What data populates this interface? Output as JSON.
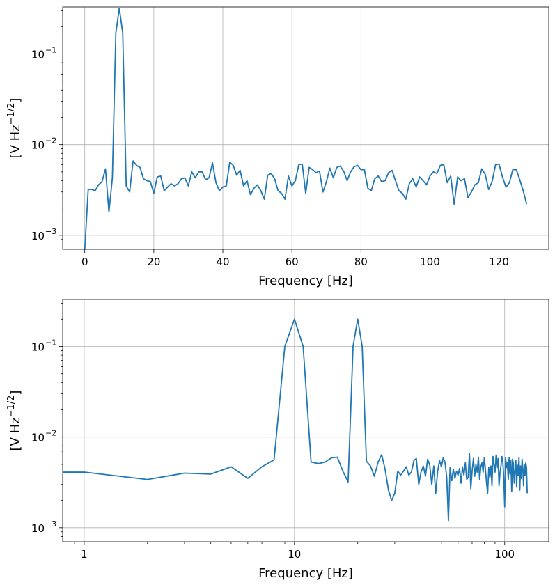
{
  "colors": {
    "series": "#1f77b4",
    "grid": "#b0b0b0",
    "frame": "#000000"
  },
  "chart_data": [
    {
      "type": "line",
      "xscale": "linear",
      "yscale": "log",
      "grid": true,
      "xlabel": "Frequency [Hz]",
      "ylabel": "[V Hz⁻¹ᐟ²]",
      "ylabel_parts": {
        "prefix": "[V Hz",
        "sup": "−1/2",
        "suffix": "]"
      },
      "xlim": [
        -6.4,
        134.4
      ],
      "ylim": [
        0.0007,
        0.33
      ],
      "xticks": [
        0,
        20,
        40,
        60,
        80,
        100,
        120
      ],
      "xtick_labels": [
        "0",
        "20",
        "40",
        "60",
        "80",
        "100",
        "120"
      ],
      "yticks": [
        0.001,
        0.01,
        0.1
      ],
      "ytick_labels": [
        [
          "10",
          "−3"
        ],
        [
          "10",
          "−2"
        ],
        [
          "10",
          "−1"
        ]
      ],
      "series": [
        {
          "x": [
            0,
            1,
            2,
            3,
            4,
            5,
            6,
            7,
            8,
            9,
            10,
            11,
            12,
            13,
            14,
            15,
            16,
            17,
            18,
            19,
            20,
            21,
            22,
            23,
            24,
            25,
            26,
            27,
            28,
            29,
            30,
            31,
            32,
            33,
            34,
            35,
            36,
            37,
            38,
            39,
            40,
            41,
            42,
            43,
            44,
            45,
            46,
            47,
            48,
            49,
            50,
            51,
            52,
            53,
            54,
            55,
            56,
            57,
            58,
            59,
            60,
            61,
            62,
            63,
            64,
            65,
            66,
            67,
            68,
            69,
            70,
            71,
            72,
            73,
            74,
            75,
            76,
            77,
            78,
            79,
            80,
            81,
            82,
            83,
            84,
            85,
            86,
            87,
            88,
            89,
            90,
            91,
            92,
            93,
            94,
            95,
            96,
            97,
            98,
            99,
            100,
            101,
            102,
            103,
            104,
            105,
            106,
            107,
            108,
            109,
            110,
            111,
            112,
            113,
            114,
            115,
            116,
            117,
            118,
            119,
            120,
            121,
            122,
            123,
            124,
            125,
            126,
            127,
            128
          ],
          "y": [
            0.0007,
            0.0032,
            0.0032,
            0.0031,
            0.0036,
            0.0039,
            0.0054,
            0.0018,
            0.0043,
            0.17,
            0.32,
            0.17,
            0.0035,
            0.003,
            0.0066,
            0.0059,
            0.0056,
            0.0042,
            0.004,
            0.0039,
            0.0029,
            0.0044,
            0.0045,
            0.0031,
            0.0034,
            0.0037,
            0.0035,
            0.0037,
            0.0042,
            0.0043,
            0.0035,
            0.005,
            0.0043,
            0.005,
            0.005,
            0.0041,
            0.0043,
            0.0063,
            0.0038,
            0.0031,
            0.0034,
            0.0035,
            0.0064,
            0.0059,
            0.0046,
            0.0052,
            0.0035,
            0.004,
            0.0028,
            0.0033,
            0.0036,
            0.0031,
            0.0025,
            0.0046,
            0.0048,
            0.0042,
            0.0031,
            0.0029,
            0.0025,
            0.0045,
            0.0035,
            0.004,
            0.006,
            0.0061,
            0.0029,
            0.0056,
            0.0053,
            0.0049,
            0.0051,
            0.003,
            0.0039,
            0.0055,
            0.0043,
            0.0056,
            0.0058,
            0.0051,
            0.004,
            0.005,
            0.0057,
            0.0059,
            0.0053,
            0.0053,
            0.0033,
            0.0031,
            0.0042,
            0.0045,
            0.0039,
            0.004,
            0.0049,
            0.0052,
            0.004,
            0.0031,
            0.0029,
            0.0025,
            0.0037,
            0.0042,
            0.0034,
            0.0044,
            0.004,
            0.0036,
            0.0045,
            0.005,
            0.0048,
            0.0059,
            0.006,
            0.0038,
            0.0045,
            0.0022,
            0.0044,
            0.004,
            0.0042,
            0.0026,
            0.003,
            0.0036,
            0.0038,
            0.0054,
            0.0047,
            0.0032,
            0.0039,
            0.006,
            0.0061,
            0.0044,
            0.0034,
            0.0038,
            0.0053,
            0.0053,
            0.0041,
            0.0031,
            0.0022
          ]
        }
      ]
    },
    {
      "type": "line",
      "xscale": "log",
      "yscale": "log",
      "grid": true,
      "xlabel": "Frequency [Hz]",
      "ylabel": "[V Hz⁻¹ᐟ²]",
      "ylabel_parts": {
        "prefix": "[V Hz",
        "sup": "−1/2",
        "suffix": "]"
      },
      "xlim": [
        0.79,
        162
      ],
      "ylim": [
        0.0007,
        0.33
      ],
      "xticks": [
        1,
        10,
        100
      ],
      "xtick_labels": [
        "1",
        "10",
        "100"
      ],
      "yticks": [
        0.001,
        0.01,
        0.1
      ],
      "ytick_labels": [
        [
          "10",
          "−3"
        ],
        [
          "10",
          "−2"
        ],
        [
          "10",
          "−1"
        ]
      ],
      "series": [
        {
          "x": [
            0.78,
            1,
            2,
            3,
            4,
            5,
            6,
            7,
            8,
            9,
            10,
            11,
            12,
            13,
            14,
            15,
            16,
            17,
            18,
            19,
            20,
            21,
            22,
            23,
            24,
            25,
            26,
            27,
            28,
            29,
            30,
            31,
            32,
            33,
            34,
            35,
            36,
            37,
            38,
            39,
            40,
            41,
            42,
            43,
            44,
            45,
            46,
            47,
            48,
            49,
            50,
            51,
            52,
            53,
            54,
            55,
            56,
            57,
            58,
            59,
            60,
            61,
            62,
            63,
            64,
            65,
            66,
            67,
            68,
            69,
            70,
            71,
            72,
            73,
            74,
            75,
            76,
            77,
            78,
            79,
            80,
            81,
            82,
            83,
            84,
            85,
            86,
            87,
            88,
            89,
            90,
            91,
            92,
            93,
            94,
            95,
            96,
            97,
            98,
            99,
            100,
            101,
            102,
            103,
            104,
            105,
            106,
            107,
            108,
            109,
            110,
            111,
            112,
            113,
            114,
            115,
            116,
            117,
            118,
            119,
            120,
            121,
            122,
            123,
            124,
            125,
            126,
            127,
            128
          ],
          "y": [
            0.0041,
            0.0041,
            0.0034,
            0.004,
            0.0039,
            0.0047,
            0.0035,
            0.0047,
            0.0056,
            0.1,
            0.2,
            0.1,
            0.0053,
            0.0051,
            0.0053,
            0.0059,
            0.006,
            0.0042,
            0.0032,
            0.1,
            0.2,
            0.1,
            0.0054,
            0.0048,
            0.0037,
            0.0053,
            0.0064,
            0.0044,
            0.0026,
            0.002,
            0.0024,
            0.0042,
            0.0038,
            0.0042,
            0.0047,
            0.0038,
            0.0041,
            0.0055,
            0.0058,
            0.003,
            0.0041,
            0.0048,
            0.0037,
            0.0057,
            0.0049,
            0.003,
            0.0048,
            0.0024,
            0.0042,
            0.0055,
            0.0047,
            0.0059,
            0.0053,
            0.0036,
            0.0012,
            0.0046,
            0.0033,
            0.0044,
            0.0035,
            0.0042,
            0.0038,
            0.0045,
            0.0031,
            0.0047,
            0.0038,
            0.0052,
            0.0034,
            0.0036,
            0.0066,
            0.0027,
            0.0042,
            0.0058,
            0.0037,
            0.005,
            0.0041,
            0.006,
            0.0034,
            0.0047,
            0.0052,
            0.0041,
            0.0059,
            0.0044,
            0.0031,
            0.0024,
            0.0046,
            0.0036,
            0.0048,
            0.0029,
            0.0061,
            0.005,
            0.0041,
            0.0063,
            0.0046,
            0.0058,
            0.0029,
            0.004,
            0.0048,
            0.0061,
            0.0053,
            0.0036,
            0.0017,
            0.0059,
            0.0046,
            0.0052,
            0.0034,
            0.0059,
            0.0039,
            0.0055,
            0.0025,
            0.0057,
            0.0051,
            0.0031,
            0.0042,
            0.0055,
            0.0028,
            0.0049,
            0.0038,
            0.006,
            0.0026,
            0.0048,
            0.0035,
            0.0057,
            0.0044,
            0.0029,
            0.005,
            0.0038,
            0.0052,
            0.0046,
            0.0024
          ]
        }
      ]
    }
  ]
}
